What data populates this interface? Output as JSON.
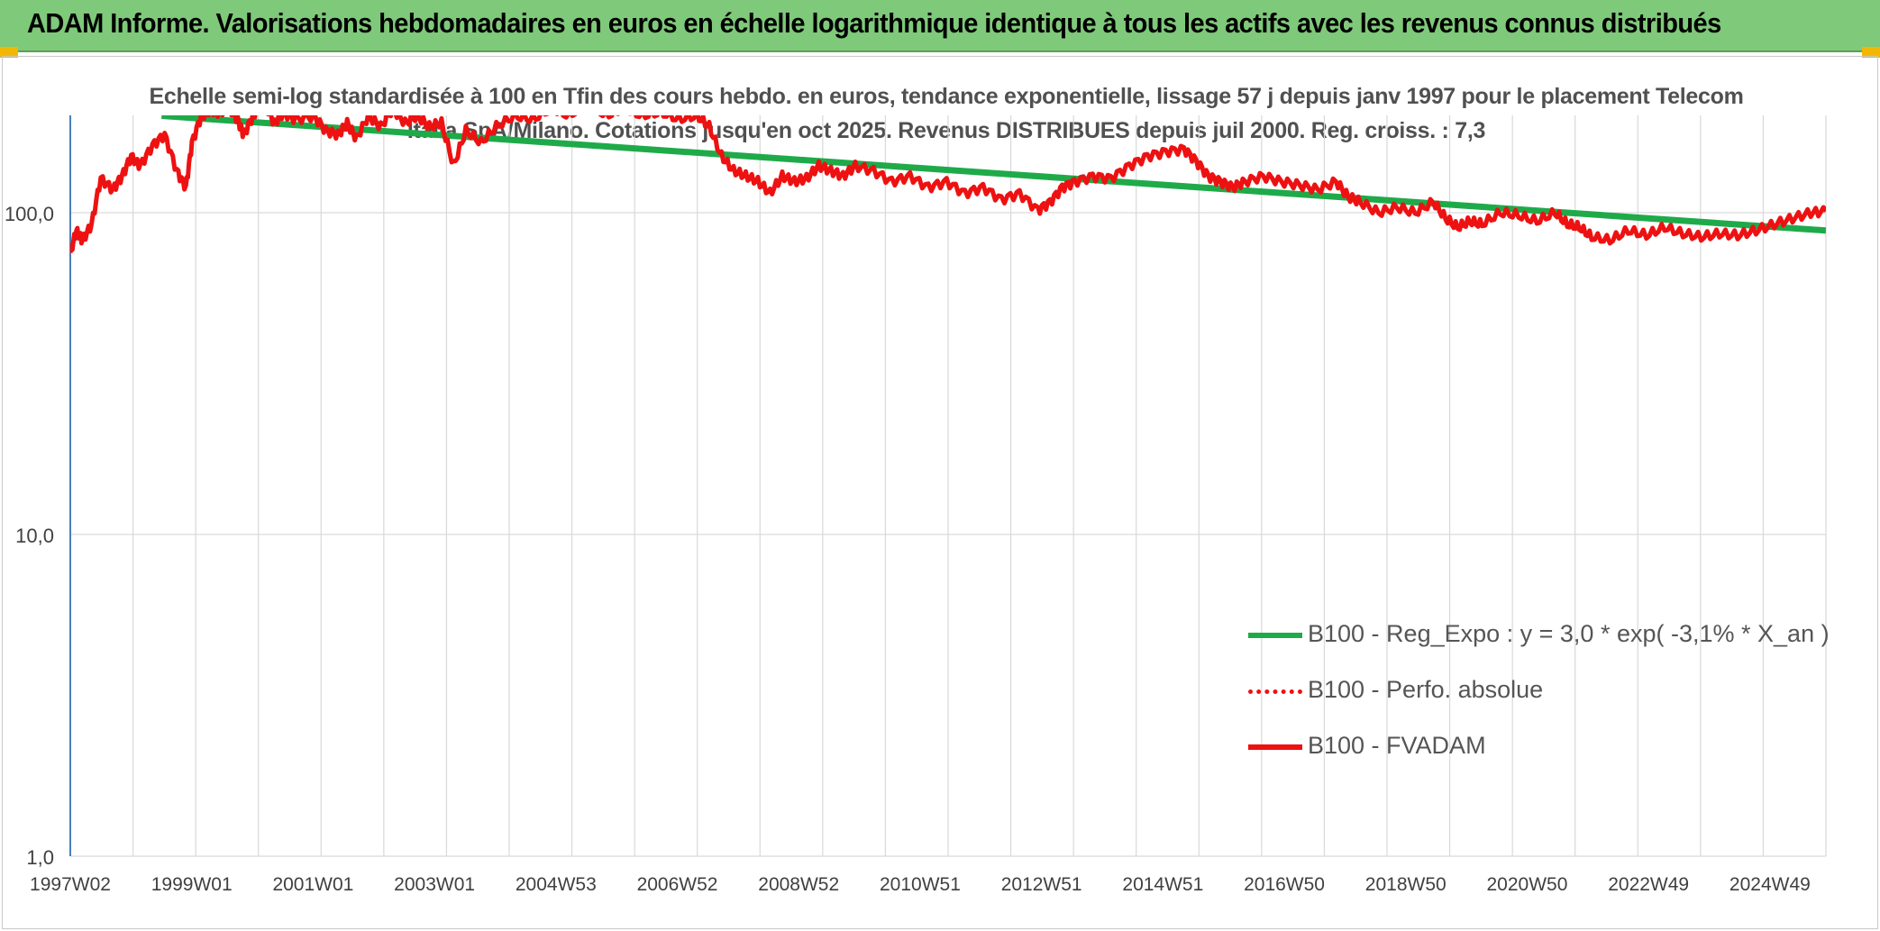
{
  "banner": {
    "title": "ADAM Informe. Valorisations hebdomadaires en euros en échelle logarithmique identique à tous les actifs avec les revenus connus distribués"
  },
  "colors": {
    "banner_bg": "#7fc97a",
    "series_fvadam": "#ee1111",
    "series_perfo": "#ee1111",
    "series_reg": "#1faa4a",
    "grid": "#d9d9d9",
    "axis": "#4a7ebb"
  },
  "chart_data": {
    "type": "line",
    "title": "Echelle semi-log standardisée à 100 en Tfin des cours hebdo. en euros, tendance exponentielle, lissage 57 j depuis janv 1997 pour le placement Telecom Italia SpA/Milano. Cotations jusqu'en oct 2025. Revenus DISTRIBUES depuis juil 2000. Reg. croiss. : 7,3",
    "y_scale": "log",
    "ylim": [
      1,
      200
    ],
    "y_ticks": [
      1,
      10,
      100
    ],
    "y_tick_labels": [
      "1,0",
      "10,0",
      "100,0"
    ],
    "x_range_years": [
      1997.0,
      2025.85
    ],
    "x_tick_labels": [
      "1997W02",
      "1999W01",
      "2001W01",
      "2003W01",
      "2004W53",
      "2006W52",
      "2008W52",
      "2010W51",
      "2012W51",
      "2014W51",
      "2016W50",
      "2018W50",
      "2020W50",
      "2022W49",
      "2024W49"
    ],
    "legend_position": "center-right",
    "series": [
      {
        "name": "B100 - Reg_Expo : y = 3,0 * exp( -3,1% *  X_an )",
        "style": "solid-green",
        "x": [
          1998.5,
          2025.85
        ],
        "y": [
          200,
          88
        ]
      },
      {
        "name": "B100 - Perfo. absolue",
        "style": "dotted-red",
        "x": [],
        "y": []
      },
      {
        "name": "B100 - FVADAM",
        "style": "solid-red",
        "x": [
          1997.0,
          1997.1,
          1997.2,
          1997.35,
          1997.5,
          1997.7,
          1997.85,
          1998.0,
          1998.15,
          1998.35,
          1998.55,
          1998.75,
          1998.9,
          1999.0,
          1999.15,
          1999.3,
          1999.45,
          1999.6,
          1999.75,
          1999.85,
          2000.0,
          2000.1,
          2000.2,
          2000.35,
          2000.5,
          2000.7,
          2001.0,
          2001.2,
          2001.4,
          2001.55,
          2001.7,
          2001.9,
          2002.1,
          2002.3,
          2002.5,
          2002.7,
          2002.9,
          2003.1,
          2003.3,
          2003.5,
          2003.75,
          2004.0,
          2004.3,
          2004.6,
          2004.9,
          2005.2,
          2005.5,
          2005.8,
          2006.1,
          2006.4,
          2006.7,
          2007.0,
          2007.3,
          2007.5,
          2007.7,
          2007.9,
          2008.1,
          2008.3,
          2008.5,
          2008.7,
          2008.9,
          2009.1,
          2009.3,
          2009.5,
          2009.7,
          2009.9,
          2010.2,
          2010.5,
          2010.8,
          2011.1,
          2011.4,
          2011.7,
          2012.0,
          2012.3,
          2012.6,
          2012.9,
          2013.1,
          2013.3,
          2013.5,
          2013.8,
          2014.1,
          2014.4,
          2014.7,
          2015.0,
          2015.3,
          2015.5,
          2015.7,
          2015.9,
          2016.1,
          2016.3,
          2016.6,
          2016.9,
          2017.2,
          2017.5,
          2017.8,
          2018.0,
          2018.2,
          2018.5,
          2018.8,
          2019.1,
          2019.4,
          2019.6,
          2019.8,
          2020.0,
          2020.2,
          2020.5,
          2020.8,
          2021.1,
          2021.4,
          2021.6,
          2021.8,
          2022.0,
          2022.3,
          2022.6,
          2022.9,
          2023.2,
          2023.5,
          2023.8,
          2024.1,
          2024.4,
          2024.7,
          2025.0,
          2025.3,
          2025.6,
          2025.85
        ],
        "y": [
          75,
          88,
          82,
          92,
          128,
          118,
          130,
          150,
          140,
          162,
          175,
          135,
          120,
          165,
          200,
          210,
          205,
          215,
          195,
          175,
          200,
          215,
          220,
          190,
          205,
          195,
          200,
          180,
          175,
          190,
          170,
          200,
          185,
          210,
          190,
          200,
          185,
          190,
          140,
          180,
          165,
          185,
          200,
          195,
          210,
          200,
          220,
          200,
          210,
          200,
          205,
          195,
          200,
          185,
          150,
          135,
          130,
          125,
          115,
          130,
          125,
          128,
          140,
          135,
          130,
          140,
          135,
          125,
          130,
          120,
          125,
          115,
          120,
          110,
          115,
          102,
          108,
          120,
          125,
          130,
          128,
          140,
          150,
          155,
          158,
          145,
          130,
          125,
          120,
          125,
          130,
          125,
          122,
          118,
          125,
          112,
          108,
          100,
          104,
          100,
          108,
          96,
          90,
          94,
          92,
          100,
          98,
          94,
          100,
          92,
          90,
          84,
          82,
          88,
          85,
          90,
          86,
          84,
          86,
          85,
          88,
          92,
          96,
          100,
          101
        ]
      }
    ]
  },
  "legend": [
    {
      "label": "B100 - Reg_Expo : y = 3,0 * exp( -3,1% *  X_an )"
    },
    {
      "label": "B100 - Perfo. absolue"
    },
    {
      "label": "B100 - FVADAM"
    }
  ]
}
